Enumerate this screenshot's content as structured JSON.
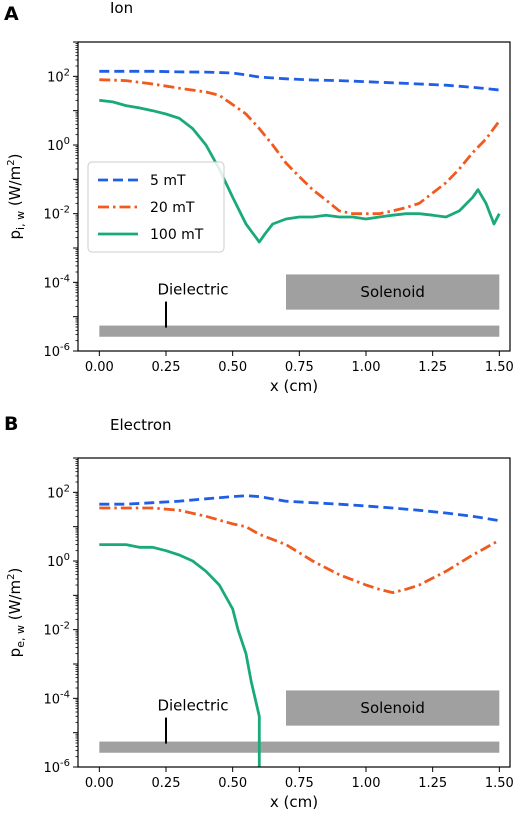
{
  "chart_data": [
    {
      "type": "line",
      "panel_label": "A",
      "title": "Ion",
      "xlabel": "x (cm)",
      "ylabel": "p",
      "ylabel_sub": "i, w",
      "ylabel_unit": " (W/m",
      "ylabel_unit_sup": "2",
      "ylabel_unit_close": ")",
      "yscale": "log",
      "xlim": [
        -0.08,
        1.54
      ],
      "ylim": [
        1e-06,
        1000
      ],
      "x_ticks": [
        0,
        0.25,
        0.5,
        0.75,
        1.0,
        1.25,
        1.5
      ],
      "x_tick_labels": [
        "0.00",
        "0.25",
        "0.50",
        "0.75",
        "1.00",
        "1.25",
        "1.50"
      ],
      "y_ticks": [
        {
          "value": 100,
          "base": "10",
          "exp": "2"
        },
        {
          "value": 1,
          "base": "10",
          "exp": "0"
        },
        {
          "value": 0.01,
          "base": "10",
          "exp": "-2"
        },
        {
          "value": 0.0001,
          "base": "10",
          "exp": "-4"
        },
        {
          "value": 1e-06,
          "base": "10",
          "exp": "-6"
        }
      ],
      "legend": {
        "placement": "center-left",
        "entries": [
          "5 mT",
          "20 mT",
          "100 mT"
        ]
      },
      "annotations": {
        "dielectric": {
          "label": "Dielectric",
          "x_range": [
            0,
            1.5
          ],
          "y_range": [
            2.6e-06,
            5.5e-06
          ],
          "marker_x": 0.25
        },
        "solenoid": {
          "label": "Solenoid",
          "x_range": [
            0.7,
            1.5
          ],
          "y_range": [
            1.6e-05,
            0.00017
          ]
        }
      },
      "series": [
        {
          "name": "5 mT",
          "color": "#1f5fe6",
          "style": "dashed",
          "x": [
            0,
            0.1,
            0.2,
            0.3,
            0.4,
            0.5,
            0.55,
            0.6,
            0.7,
            0.8,
            0.9,
            1.0,
            1.1,
            1.2,
            1.3,
            1.4,
            1.5
          ],
          "y": [
            140,
            140,
            140,
            135,
            133,
            125,
            110,
            95,
            85,
            78,
            75,
            70,
            65,
            60,
            55,
            48,
            40
          ]
        },
        {
          "name": "20 mT",
          "color": "#f05a1e",
          "style": "dashdot",
          "x": [
            0,
            0.1,
            0.2,
            0.3,
            0.4,
            0.45,
            0.5,
            0.55,
            0.6,
            0.65,
            0.7,
            0.75,
            0.8,
            0.85,
            0.9,
            0.95,
            1.0,
            1.05,
            1.1,
            1.15,
            1.2,
            1.25,
            1.3,
            1.35,
            1.4,
            1.45,
            1.5
          ],
          "y": [
            80,
            75,
            60,
            45,
            35,
            28,
            15,
            8,
            3,
            1,
            0.3,
            0.12,
            0.05,
            0.025,
            0.012,
            0.01,
            0.01,
            0.01,
            0.012,
            0.015,
            0.02,
            0.04,
            0.08,
            0.2,
            0.6,
            1.5,
            5
          ]
        },
        {
          "name": "100 mT",
          "color": "#1aaa7a",
          "style": "solid",
          "x": [
            0,
            0.05,
            0.1,
            0.15,
            0.2,
            0.25,
            0.3,
            0.35,
            0.4,
            0.45,
            0.5,
            0.55,
            0.6,
            0.62,
            0.65,
            0.7,
            0.75,
            0.8,
            0.85,
            0.9,
            0.95,
            1.0,
            1.05,
            1.1,
            1.15,
            1.2,
            1.25,
            1.3,
            1.35,
            1.4,
            1.42,
            1.45,
            1.48,
            1.5
          ],
          "y": [
            20,
            18,
            14,
            12,
            10,
            8,
            6,
            3,
            1,
            0.2,
            0.03,
            0.005,
            0.0015,
            0.0025,
            0.005,
            0.007,
            0.008,
            0.008,
            0.009,
            0.008,
            0.008,
            0.007,
            0.008,
            0.009,
            0.01,
            0.01,
            0.009,
            0.008,
            0.012,
            0.03,
            0.05,
            0.02,
            0.005,
            0.01
          ]
        }
      ]
    },
    {
      "type": "line",
      "panel_label": "B",
      "title": "Electron",
      "xlabel": "x (cm)",
      "ylabel": "p",
      "ylabel_sub": "e, w",
      "ylabel_unit": " (W/m",
      "ylabel_unit_sup": "2",
      "ylabel_unit_close": ")",
      "yscale": "log",
      "xlim": [
        -0.08,
        1.54
      ],
      "ylim": [
        1e-06,
        1000
      ],
      "x_ticks": [
        0,
        0.25,
        0.5,
        0.75,
        1.0,
        1.25,
        1.5
      ],
      "x_tick_labels": [
        "0.00",
        "0.25",
        "0.50",
        "0.75",
        "1.00",
        "1.25",
        "1.50"
      ],
      "y_ticks": [
        {
          "value": 100,
          "base": "10",
          "exp": "2"
        },
        {
          "value": 1,
          "base": "10",
          "exp": "0"
        },
        {
          "value": 0.01,
          "base": "10",
          "exp": "-2"
        },
        {
          "value": 0.0001,
          "base": "10",
          "exp": "-4"
        },
        {
          "value": 1e-06,
          "base": "10",
          "exp": "-6"
        }
      ],
      "legend": null,
      "annotations": {
        "dielectric": {
          "label": "Dielectric",
          "x_range": [
            0,
            1.5
          ],
          "y_range": [
            2.6e-06,
            5.5e-06
          ],
          "marker_x": 0.25
        },
        "solenoid": {
          "label": "Solenoid",
          "x_range": [
            0.7,
            1.5
          ],
          "y_range": [
            1.6e-05,
            0.00017
          ]
        }
      },
      "series": [
        {
          "name": "5 mT",
          "color": "#1f5fe6",
          "style": "dashed",
          "x": [
            0,
            0.1,
            0.2,
            0.3,
            0.4,
            0.5,
            0.55,
            0.6,
            0.7,
            0.8,
            0.9,
            1.0,
            1.1,
            1.2,
            1.3,
            1.4,
            1.5
          ],
          "y": [
            45,
            45,
            50,
            55,
            65,
            75,
            80,
            75,
            55,
            50,
            45,
            40,
            35,
            30,
            25,
            20,
            15
          ]
        },
        {
          "name": "20 mT",
          "color": "#f05a1e",
          "style": "dashdot",
          "x": [
            0,
            0.1,
            0.2,
            0.3,
            0.4,
            0.5,
            0.55,
            0.6,
            0.7,
            0.8,
            0.9,
            1.0,
            1.05,
            1.1,
            1.15,
            1.2,
            1.3,
            1.4,
            1.5
          ],
          "y": [
            35,
            35,
            35,
            30,
            20,
            12,
            10,
            6,
            3,
            1,
            0.4,
            0.2,
            0.15,
            0.12,
            0.15,
            0.2,
            0.5,
            1.5,
            4
          ]
        },
        {
          "name": "100 mT",
          "color": "#1aaa7a",
          "style": "solid",
          "x": [
            0,
            0.05,
            0.1,
            0.15,
            0.2,
            0.25,
            0.3,
            0.35,
            0.4,
            0.45,
            0.5,
            0.52,
            0.55,
            0.57,
            0.6,
            0.6
          ],
          "y": [
            3,
            3,
            3,
            2.5,
            2.5,
            2,
            1.5,
            1,
            0.5,
            0.2,
            0.04,
            0.01,
            0.002,
            0.0003,
            3e-05,
            1e-06
          ]
        }
      ]
    }
  ]
}
